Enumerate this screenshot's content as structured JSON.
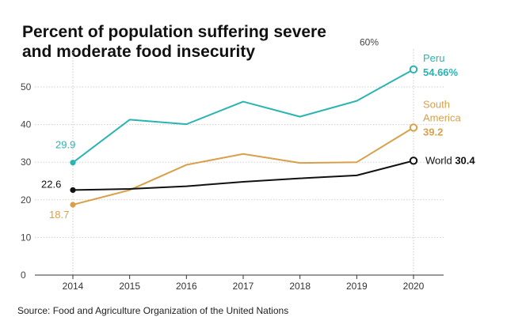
{
  "title": "Percent of population suffering severe and moderate food insecurity",
  "source": "Source: Food and Agriculture Organization of the United Nations",
  "chart_data": {
    "type": "line",
    "title": "Percent of population suffering severe and moderate food insecurity",
    "xlabel": "",
    "ylabel": "",
    "x": [
      2014,
      2015,
      2016,
      2017,
      2018,
      2019,
      2020
    ],
    "ylim": [
      0,
      60
    ],
    "y_ticks": [
      0,
      10,
      20,
      30,
      40,
      50
    ],
    "y_top_label": "60%",
    "grid": true,
    "series": [
      {
        "name": "Peru",
        "color": "#2bb3b1",
        "values": [
          29.9,
          41.3,
          40.1,
          46.1,
          42.1,
          46.3,
          54.66
        ],
        "start_label": "29.9",
        "end_label": "54.66%"
      },
      {
        "name": "South America",
        "name_lines": [
          "South",
          "America"
        ],
        "color": "#d9a04a",
        "values": [
          18.7,
          22.6,
          29.3,
          32.2,
          29.8,
          30.0,
          39.2
        ],
        "start_label": "18.7",
        "end_label": "39.2"
      },
      {
        "name": "World",
        "color": "#111111",
        "values": [
          22.6,
          22.9,
          23.6,
          24.8,
          25.7,
          26.5,
          30.4
        ],
        "start_label": "22.6",
        "end_label": "30.4"
      }
    ]
  }
}
